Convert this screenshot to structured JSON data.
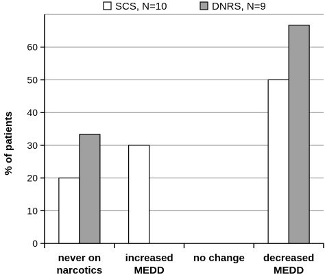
{
  "chart_data": {
    "type": "bar",
    "title": "",
    "xlabel": "",
    "ylabel": "% of patients",
    "ylim": [
      0,
      70
    ],
    "yticks": [
      0,
      10,
      20,
      30,
      40,
      50,
      60
    ],
    "grid": true,
    "legend": "top-center",
    "categories": [
      [
        "never on",
        "narcotics"
      ],
      [
        "increased",
        "MEDD"
      ],
      [
        "no change"
      ],
      [
        "decreased",
        "MEDD"
      ]
    ],
    "series": [
      {
        "name": "SCS, N=10",
        "color": "#ffffff",
        "values": [
          20,
          30,
          0,
          50
        ]
      },
      {
        "name": "DNRS, N=9",
        "color": "#a0a0a0",
        "values": [
          33.3,
          0,
          0,
          66.7
        ]
      }
    ]
  }
}
